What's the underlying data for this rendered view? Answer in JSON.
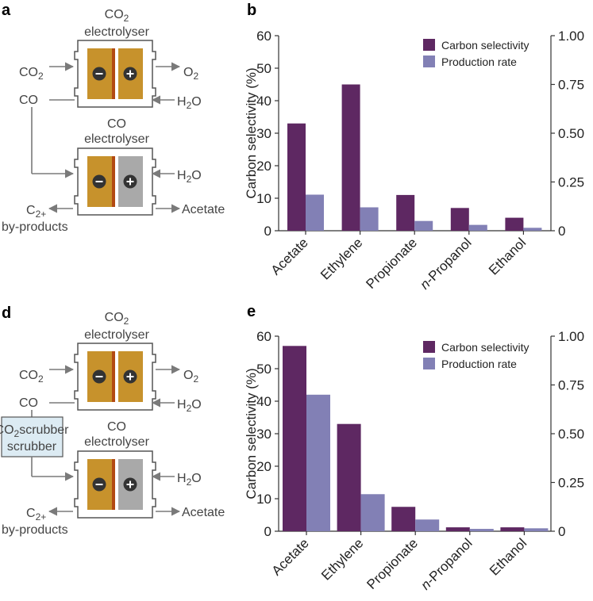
{
  "panels": {
    "a": {
      "letter": "a",
      "top_title": [
        "CO",
        "2",
        "electrolyser"
      ],
      "bottom_title": [
        "CO",
        "electrolyser"
      ],
      "in_co2": [
        "CO",
        "2"
      ],
      "out_o2": [
        "O",
        "2"
      ],
      "h2o_top": [
        "H",
        "2",
        "O"
      ],
      "co_label": "CO",
      "h2o_bottom": [
        "H",
        "2",
        "O"
      ],
      "c2_label": [
        "C",
        "2+"
      ],
      "byproducts": "by-products",
      "acetate": "Acetate"
    },
    "d": {
      "letter": "d",
      "top_title": [
        "CO",
        "2",
        "electrolyser"
      ],
      "bottom_title": [
        "CO",
        "electrolyser"
      ],
      "in_co2": [
        "CO",
        "2"
      ],
      "out_o2": [
        "O",
        "2"
      ],
      "h2o_top": [
        "H",
        "2",
        "O"
      ],
      "co_label": "CO",
      "h2o_bottom": [
        "H",
        "2",
        "O"
      ],
      "c2_label": [
        "C",
        "2+"
      ],
      "byproducts": "by-products",
      "acetate": "Acetate",
      "scrubber": [
        "CO",
        "2",
        "scrubber"
      ]
    }
  },
  "chart_data": [
    {
      "panel": "b",
      "type": "bar",
      "categories": [
        "Acetate",
        "Ethylene",
        "Propionate",
        "n-Propanol",
        "Ethanol"
      ],
      "series": [
        {
          "name": "Carbon selectivity",
          "axis": "left",
          "color": "#5e2862",
          "values": [
            33,
            45,
            11,
            7,
            4
          ]
        },
        {
          "name": "Production rate",
          "axis": "right",
          "color": "#8280b5",
          "values": [
            0.185,
            0.12,
            0.05,
            0.03,
            0.015
          ]
        }
      ],
      "ylabel": "Carbon selectivity (%)",
      "ylim": [
        0,
        60
      ],
      "yticks": [
        "0",
        "10",
        "20",
        "30",
        "40",
        "50",
        "60"
      ],
      "y2lim": [
        0,
        1.0
      ],
      "y2ticks": [
        "0",
        "0.25",
        "0.50",
        "0.75",
        "1.00"
      ],
      "legend": "top-right"
    },
    {
      "panel": "e",
      "type": "bar",
      "categories": [
        "Acetate",
        "Ethylene",
        "Propionate",
        "n-Propanol",
        "Ethanol"
      ],
      "series": [
        {
          "name": "Carbon selectivity",
          "axis": "left",
          "color": "#5e2862",
          "values": [
            57,
            33,
            7.5,
            1.2,
            1.2
          ]
        },
        {
          "name": "Production rate",
          "axis": "right",
          "color": "#8280b5",
          "values": [
            0.7,
            0.19,
            0.06,
            0.012,
            0.015
          ]
        }
      ],
      "ylabel": "Carbon selectivity (%)",
      "ylim": [
        0,
        60
      ],
      "yticks": [
        "0",
        "10",
        "20",
        "30",
        "40",
        "50",
        "60"
      ],
      "y2lim": [
        0,
        1.0
      ],
      "y2ticks": [
        "0",
        "0.25",
        "0.50",
        "0.75",
        "1.00"
      ],
      "legend": "top-right"
    }
  ]
}
